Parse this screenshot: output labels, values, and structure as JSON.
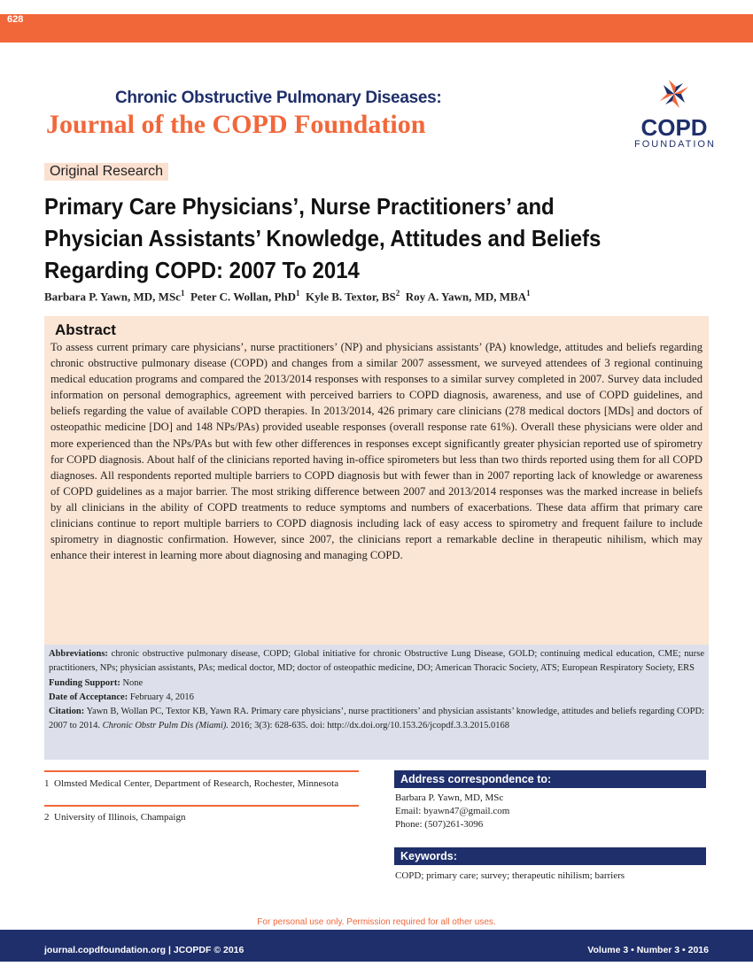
{
  "header": {
    "page_number": "628",
    "journal_line1": "Chronic Obstructive Pulmonary Diseases:",
    "journal_line2": "Journal of the COPD Foundation",
    "logo_word": "COPD",
    "logo_sub": "FOUNDATION"
  },
  "article": {
    "section": "Original Research",
    "title": "Primary Care Physicians’, Nurse Practitioners’ and Physician Assistants’ Knowledge, Attitudes and Beliefs Regarding COPD: 2007 To 2014",
    "authors": [
      {
        "name": "Barbara P. Yawn, MD, MSc",
        "aff": "1"
      },
      {
        "name": "Peter C. Wollan, PhD",
        "aff": "1"
      },
      {
        "name": "Kyle B. Textor, BS",
        "aff": "2"
      },
      {
        "name": "Roy A. Yawn, MD, MBA",
        "aff": "1"
      }
    ]
  },
  "abstract": {
    "heading": "Abstract",
    "text": "To assess current primary care physicians’, nurse practitioners’ (NP) and physicians assistants’ (PA) knowledge, attitudes and beliefs regarding chronic obstructive pulmonary disease (COPD) and changes from a similar 2007 assessment, we surveyed attendees of 3 regional continuing medical education programs and compared the 2013/2014 responses with responses to a similar survey completed in 2007.  Survey data included information on personal demographics, agreement with perceived barriers to COPD diagnosis, awareness, and use of COPD guidelines, and beliefs regarding the value of available COPD therapies.  In 2013/2014, 426 primary care clinicians (278 medical doctors [MDs] and doctors of osteopathic medicine [DO] and 148 NPs/PAs) provided useable responses (overall response rate 61%).  Overall these physicians were older and more experienced than the NPs/PAs but with few other differences in responses except significantly greater physician reported use of spirometry for COPD diagnosis.  About half of the clinicians reported having in-office spirometers but less than two thirds reported using them for all COPD diagnoses.  All respondents reported multiple barriers to COPD diagnosis but with fewer than in 2007 reporting lack of knowledge or awareness of COPD guidelines as a major barrier. The most striking difference between 2007 and 2013/2014 responses was the marked increase in beliefs by all clinicians in the ability of COPD treatments to reduce symptoms and numbers of exacerbations.  These data affirm that primary care clinicians continue to report multiple barriers to COPD diagnosis including lack of easy access to spirometry and frequent failure to include spirometry in diagnostic confirmation.  However, since 2007, the clinicians report a remarkable decline in therapeutic nihilism, which may enhance their interest in learning more about diagnosing and managing COPD."
  },
  "meta": {
    "abbrev_label": "Abbreviations:",
    "abbrev_text": "chronic obstructive pulmonary disease, COPD; Global initiative for chronic Obstructive Lung Disease, GOLD; continuing medical education, CME; nurse practitioners, NPs; physician assistants, PAs; medical doctor, MD; doctor of osteopathic medicine, DO; American Thoracic Society, ATS; European Respiratory Society, ERS",
    "funding_label": "Funding Support:",
    "funding": "None",
    "accept_label": "Date of Acceptance:",
    "accept": "February 4, 2016",
    "citation_label": "Citation:",
    "citation_a": "Yawn B, Wollan PC, Textor KB, Yawn RA. Primary care physicians’, nurse practitioners’ and physician assistants’ knowledge, attitudes and beliefs regarding COPD: 2007 to 2014.",
    "citation_journal": "Chronic Obstr Pulm Dis (Miami).",
    "citation_b": "2016; 3(3): 628-635. doi: http://dx.doi.org/10.153.26/jcopdf.3.3.2015.0168"
  },
  "affiliations": [
    {
      "num": "1",
      "text": "Olmsted Medical Center, Department of Research, Rochester, Minnesota"
    },
    {
      "num": "2",
      "text": "University of Illinois, Champaign"
    }
  ],
  "correspondence": {
    "heading": "Address correspondence to:",
    "name": "Barbara P. Yawn, MD, MSc",
    "email": "Email: byawn47@gmail.com",
    "phone": "Phone: (507)261-3096"
  },
  "keywords": {
    "heading": "Keywords:",
    "text": "COPD; primary care; survey; therapeutic nihilism; barriers"
  },
  "footer": {
    "permission": "For personal use only. Permission required for all other uses.",
    "left": "journal.copdfoundation.org | JCOPDF © 2016",
    "right": "Volume 3 • Number 3 • 2016"
  },
  "colors": {
    "orange": "#f2673a",
    "navy": "#1f2f6b"
  }
}
